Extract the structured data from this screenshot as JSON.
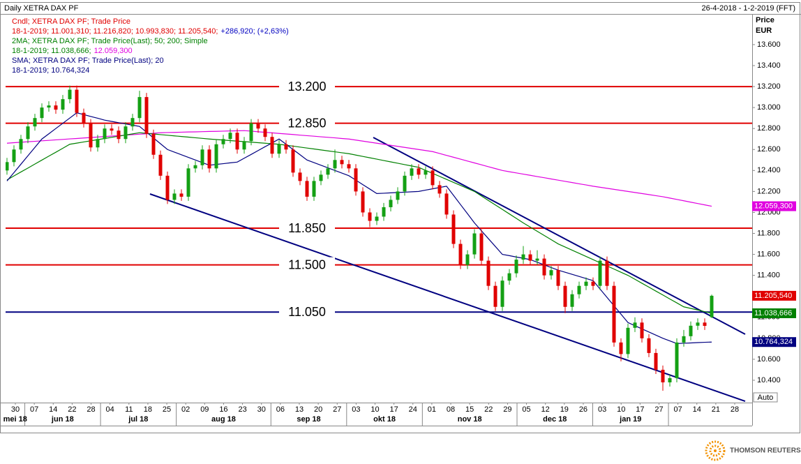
{
  "header": {
    "title": "Daily XETRA DAX PF",
    "range": "26-4-2018 - 1-2-2019 (FFT)"
  },
  "chart_data": {
    "type": "candlestick",
    "legend_lines": [
      [
        {
          "text": "Cndl; XETRA DAX PF; Trade Price",
          "color": "#e00000"
        }
      ],
      [
        {
          "text": "18-1-2019; 11.001,310; 11.216,820; 10.993,830; 11.205,540;",
          "color": "#e00000"
        },
        {
          "text": "+286,920; (+2,63%)",
          "color": "#0000c0"
        }
      ],
      [
        {
          "text": "2MA; XETRA DAX PF; Trade Price(Last);  50; 200; Simple",
          "color": "#008000"
        }
      ],
      [
        {
          "text": "18-1-2019; 11.038,666;",
          "color": "#008000"
        },
        {
          "text": "12.059,300",
          "color": "#e000e0"
        }
      ],
      [
        {
          "text": "SMA; XETRA DAX PF; Trade Price(Last);  20",
          "color": "#000080"
        }
      ],
      [
        {
          "text": "18-1-2019; 10.764,324",
          "color": "#000080"
        }
      ]
    ],
    "y_label": "Price",
    "y_unit": "EUR",
    "ylim": [
      10187,
      13879
    ],
    "yticks": [
      {
        "value": 10400,
        "label": "10.400"
      },
      {
        "value": 10600,
        "label": "10.600"
      },
      {
        "value": 10800,
        "label": "10.800"
      },
      {
        "value": 11000,
        "label": "11.000"
      },
      {
        "value": 11200,
        "label": "11.200"
      },
      {
        "value": 11400,
        "label": "11.400"
      },
      {
        "value": 11600,
        "label": "11.600"
      },
      {
        "value": 11800,
        "label": "11.800"
      },
      {
        "value": 12000,
        "label": "12.000"
      },
      {
        "value": 12200,
        "label": "12.200"
      },
      {
        "value": 12400,
        "label": "12.400"
      },
      {
        "value": 12600,
        "label": "12.600"
      },
      {
        "value": 12800,
        "label": "12.800"
      },
      {
        "value": 13000,
        "label": "13.000"
      },
      {
        "value": 13200,
        "label": "13.200"
      },
      {
        "value": 13400,
        "label": "13.400"
      },
      {
        "value": 13600,
        "label": "13.600"
      }
    ],
    "week_labels": [
      "30",
      "07",
      "14",
      "22",
      "28",
      "04",
      "11",
      "18",
      "25",
      "02",
      "09",
      "16",
      "23",
      "30",
      "06",
      "13",
      "20",
      "27",
      "03",
      "10",
      "17",
      "24",
      "01",
      "08",
      "15",
      "22",
      "29",
      "05",
      "12",
      "19",
      "26",
      "03",
      "10",
      "17",
      "27",
      "07",
      "14",
      "21",
      "28"
    ],
    "month_labels": [
      "mei 18",
      "jun 18",
      "jul 18",
      "aug 18",
      "sep 18",
      "okt 18",
      "nov 18",
      "dec 18",
      "jan 19"
    ],
    "up_color": "#14a014",
    "down_color": "#e00000",
    "ohlc": [
      [
        12400,
        12520,
        12360,
        12480
      ],
      [
        12480,
        12640,
        12440,
        12600
      ],
      [
        12600,
        12740,
        12560,
        12700
      ],
      [
        12700,
        12860,
        12660,
        12820
      ],
      [
        12820,
        12940,
        12780,
        12900
      ],
      [
        12900,
        13040,
        12860,
        13000
      ],
      [
        13000,
        13060,
        12960,
        13020
      ],
      [
        13020,
        13060,
        12940,
        12980
      ],
      [
        12980,
        13120,
        12940,
        13080
      ],
      [
        13080,
        13210,
        13040,
        13170
      ],
      [
        13170,
        13210,
        12910,
        12950
      ],
      [
        12950,
        12990,
        12810,
        12850
      ],
      [
        12850,
        12890,
        12580,
        12620
      ],
      [
        12620,
        12740,
        12580,
        12700
      ],
      [
        12700,
        12840,
        12660,
        12800
      ],
      [
        12800,
        12840,
        12740,
        12780
      ],
      [
        12780,
        12820,
        12660,
        12700
      ],
      [
        12700,
        12860,
        12660,
        12820
      ],
      [
        12820,
        12940,
        12780,
        12900
      ],
      [
        12900,
        13160,
        12860,
        13100
      ],
      [
        13100,
        13140,
        12710,
        12750
      ],
      [
        12750,
        12790,
        12510,
        12550
      ],
      [
        12550,
        12590,
        12310,
        12350
      ],
      [
        12350,
        12390,
        12080,
        12120
      ],
      [
        12120,
        12220,
        12080,
        12180
      ],
      [
        12180,
        12220,
        12110,
        12150
      ],
      [
        12150,
        12460,
        12110,
        12420
      ],
      [
        12420,
        12490,
        12380,
        12450
      ],
      [
        12450,
        12640,
        12410,
        12600
      ],
      [
        12600,
        12640,
        12380,
        12420
      ],
      [
        12420,
        12690,
        12380,
        12650
      ],
      [
        12650,
        12740,
        12610,
        12700
      ],
      [
        12700,
        12800,
        12660,
        12760
      ],
      [
        12760,
        12800,
        12560,
        12600
      ],
      [
        12600,
        12720,
        12560,
        12680
      ],
      [
        12680,
        12890,
        12640,
        12850
      ],
      [
        12850,
        12890,
        12760,
        12800
      ],
      [
        12800,
        12840,
        12680,
        12720
      ],
      [
        12720,
        12760,
        12520,
        12560
      ],
      [
        12560,
        12690,
        12520,
        12650
      ],
      [
        12650,
        12690,
        12560,
        12600
      ],
      [
        12600,
        12640,
        12340,
        12380
      ],
      [
        12380,
        12420,
        12260,
        12300
      ],
      [
        12300,
        12340,
        12110,
        12150
      ],
      [
        12150,
        12340,
        12110,
        12300
      ],
      [
        12300,
        12400,
        12260,
        12360
      ],
      [
        12360,
        12460,
        12320,
        12420
      ],
      [
        12420,
        12600,
        12380,
        12500
      ],
      [
        12500,
        12540,
        12420,
        12460
      ],
      [
        12460,
        12500,
        12380,
        12420
      ],
      [
        12420,
        12460,
        12160,
        12200
      ],
      [
        12200,
        12240,
        11960,
        12000
      ],
      [
        12000,
        12040,
        11860,
        11920
      ],
      [
        11920,
        12000,
        11880,
        11960
      ],
      [
        11960,
        12090,
        11920,
        12050
      ],
      [
        12050,
        12160,
        12010,
        12120
      ],
      [
        12120,
        12240,
        12080,
        12200
      ],
      [
        12200,
        12390,
        12160,
        12350
      ],
      [
        12350,
        12460,
        12310,
        12420
      ],
      [
        12420,
        12460,
        12320,
        12360
      ],
      [
        12360,
        12440,
        12320,
        12400
      ],
      [
        12400,
        12440,
        12220,
        12260
      ],
      [
        12260,
        12300,
        12140,
        12180
      ],
      [
        12180,
        12220,
        11940,
        11980
      ],
      [
        11980,
        12020,
        11660,
        11700
      ],
      [
        11700,
        11740,
        11460,
        11500
      ],
      [
        11500,
        11640,
        11460,
        11600
      ],
      [
        11600,
        11840,
        11560,
        11800
      ],
      [
        11800,
        11840,
        11500,
        11540
      ],
      [
        11540,
        11580,
        11260,
        11300
      ],
      [
        11300,
        11340,
        11060,
        11100
      ],
      [
        11100,
        11390,
        11060,
        11350
      ],
      [
        11350,
        11460,
        11310,
        11420
      ],
      [
        11420,
        11590,
        11380,
        11550
      ],
      [
        11550,
        11680,
        11510,
        11600
      ],
      [
        11600,
        11640,
        11500,
        11540
      ],
      [
        11540,
        11640,
        11500,
        11560
      ],
      [
        11560,
        11600,
        11360,
        11400
      ],
      [
        11400,
        11490,
        11360,
        11450
      ],
      [
        11450,
        11490,
        11260,
        11300
      ],
      [
        11300,
        11340,
        11040,
        11100
      ],
      [
        11100,
        11260,
        11060,
        11220
      ],
      [
        11220,
        11340,
        11180,
        11300
      ],
      [
        11300,
        11380,
        11260,
        11340
      ],
      [
        11340,
        11380,
        11260,
        11300
      ],
      [
        11300,
        11580,
        11260,
        11540
      ],
      [
        11540,
        11580,
        11260,
        11300
      ],
      [
        11300,
        11340,
        10720,
        10760
      ],
      [
        10760,
        10800,
        10580,
        10650
      ],
      [
        10650,
        10940,
        10610,
        10900
      ],
      [
        10900,
        11000,
        10860,
        10950
      ],
      [
        10950,
        10990,
        10760,
        10800
      ],
      [
        10800,
        10840,
        10620,
        10660
      ],
      [
        10660,
        10700,
        10460,
        10500
      ],
      [
        10500,
        10540,
        10300,
        10380
      ],
      [
        10380,
        10460,
        10340,
        10420
      ],
      [
        10420,
        10800,
        10380,
        10760
      ],
      [
        10760,
        10880,
        10720,
        10820
      ],
      [
        10820,
        10960,
        10780,
        10920
      ],
      [
        10920,
        10990,
        10880,
        10950
      ],
      [
        10950,
        10990,
        10880,
        10918.62
      ],
      [
        11001.31,
        11216.82,
        10993.83,
        11205.54
      ]
    ],
    "close_label": "11.205,540",
    "series": [
      {
        "color": "#e000e0",
        "value_label": "12.059,300",
        "values": [
          12660,
          12665,
          12669,
          12674,
          12678,
          12683,
          12687,
          12692,
          12696,
          12701,
          12705,
          12710,
          12714,
          12719,
          12723,
          12728,
          12732,
          12737,
          12741,
          12746,
          12750,
          12755,
          12760,
          12762,
          12763,
          12765,
          12767,
          12768,
          12770,
          12772,
          12773,
          12775,
          12777,
          12778,
          12780,
          12775,
          12769,
          12764,
          12759,
          12753,
          12748,
          12743,
          12737,
          12732,
          12727,
          12721,
          12716,
          12711,
          12705,
          12700,
          12690,
          12680,
          12670,
          12660,
          12650,
          12640,
          12630,
          12620,
          12610,
          12600,
          12590,
          12580,
          12562,
          12544,
          12526,
          12508,
          12490,
          12472,
          12454,
          12436,
          12418,
          12400,
          12388,
          12377,
          12365,
          12354,
          12342,
          12331,
          12319,
          12308,
          12296,
          12285,
          12273,
          12262,
          12250,
          12240,
          12230,
          12220,
          12210,
          12200,
          12190,
          12180,
          12170,
          12160,
          12150,
          12137,
          12124,
          12111,
          12098,
          12085,
          12072,
          12059.3
        ]
      },
      {
        "color": "#008000",
        "value_label": "11.038,666",
        "values": [
          12310,
          12348,
          12386,
          12423,
          12461,
          12499,
          12537,
          12574,
          12612,
          12650,
          12661,
          12672,
          12683,
          12694,
          12705,
          12716,
          12727,
          12738,
          12749,
          12760,
          12754,
          12748,
          12742,
          12736,
          12730,
          12724,
          12718,
          12712,
          12706,
          12700,
          12695,
          12690,
          12685,
          12680,
          12675,
          12670,
          12665,
          12660,
          12655,
          12650,
          12641,
          12632,
          12623,
          12614,
          12605,
          12596,
          12587,
          12578,
          12569,
          12560,
          12547,
          12534,
          12521,
          12508,
          12495,
          12482,
          12469,
          12456,
          12443,
          12430,
          12401,
          12373,
          12344,
          12315,
          12286,
          12258,
          12229,
          12200,
          12157,
          12114,
          12071,
          12029,
          11986,
          11943,
          11900,
          11860,
          11820,
          11780,
          11740,
          11700,
          11670,
          11640,
          11610,
          11580,
          11550,
          11520,
          11490,
          11460,
          11430,
          11400,
          11363,
          11325,
          11288,
          11250,
          11213,
          11175,
          11138,
          11100,
          11085,
          11070,
          11054,
          11038.666
        ]
      },
      {
        "color": "#000080",
        "value_label": "10.764,324",
        "values": [
          12300,
          12380,
          12460,
          12540,
          12620,
          12700,
          12750,
          12800,
          12850,
          12900,
          12950,
          12933,
          12915,
          12898,
          12880,
          12868,
          12856,
          12844,
          12832,
          12820,
          12765,
          12710,
          12655,
          12600,
          12575,
          12550,
          12525,
          12500,
          12475,
          12450,
          12458,
          12465,
          12473,
          12480,
          12517,
          12553,
          12590,
          12627,
          12663,
          12700,
          12650,
          12600,
          12550,
          12500,
          12475,
          12450,
          12425,
          12400,
          12375,
          12350,
          12308,
          12265,
          12223,
          12180,
          12183,
          12187,
          12190,
          12193,
          12197,
          12200,
          12213,
          12225,
          12238,
          12250,
          12163,
          12075,
          11988,
          11900,
          11825,
          11750,
          11675,
          11600,
          11588,
          11575,
          11563,
          11550,
          11525,
          11500,
          11475,
          11450,
          11430,
          11410,
          11390,
          11370,
          11350,
          11270,
          11190,
          11110,
          11030,
          10950,
          10920,
          10890,
          10860,
          10830,
          10800,
          10775,
          10750,
          10753,
          10756,
          10759,
          10762,
          10764.324
        ]
      }
    ],
    "levels": [
      {
        "value": 13200,
        "label": "13.200",
        "color": "#e00000"
      },
      {
        "value": 12850,
        "label": "12.850",
        "color": "#e00000"
      },
      {
        "value": 11850,
        "label": "11.850",
        "color": "#e00000"
      },
      {
        "value": 11500,
        "label": "11.500",
        "color": "#e00000"
      },
      {
        "value": 11050,
        "label": "11.050",
        "color": "#000080"
      }
    ],
    "trendlines": [
      {
        "x": [
          52.5,
          105.8
        ],
        "y": [
          12715,
          10839
        ],
        "color": "#000080"
      },
      {
        "x": [
          20.5,
          105.8
        ],
        "y": [
          12176,
          10200
        ],
        "color": "#000080"
      }
    ],
    "auto_button": "Auto"
  },
  "footer": {
    "brand": "THOMSON REUTERS"
  }
}
